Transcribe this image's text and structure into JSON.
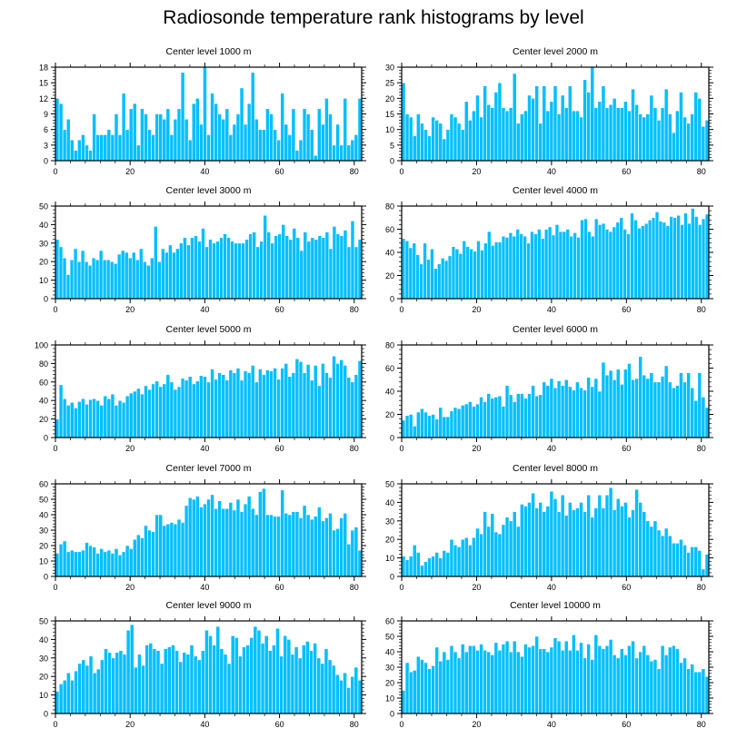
{
  "title": "Radiosonde temperature rank histograms by level",
  "colors": {
    "bar": "#00BFFF",
    "bar_edge": "#ffffff",
    "axis": "#000000"
  },
  "chart_data": [
    {
      "type": "bar",
      "title": "Center level 1000 m",
      "xlim": [
        0,
        82
      ],
      "ylim": [
        0,
        18
      ],
      "xticks": [
        0,
        20,
        40,
        60,
        80
      ],
      "yticks": [
        0,
        3,
        6,
        9,
        12,
        15,
        18
      ],
      "values": [
        12,
        11,
        6,
        8,
        4,
        2,
        4,
        5,
        3,
        2,
        9,
        5,
        5,
        5,
        6,
        5,
        9,
        5,
        13,
        6,
        10,
        11,
        3,
        10,
        9,
        6,
        5,
        9,
        9,
        8,
        10,
        5,
        8,
        10,
        17,
        8,
        4,
        11,
        12,
        7,
        18,
        5,
        13,
        11,
        9,
        8,
        10,
        5,
        7,
        9,
        14,
        7,
        11,
        17,
        8,
        6,
        6,
        10,
        9,
        6,
        4,
        13,
        7,
        5,
        10,
        2,
        4,
        10,
        9,
        6,
        1,
        10,
        7,
        12,
        9,
        3,
        7,
        3,
        12,
        3,
        4,
        5,
        12
      ]
    },
    {
      "type": "bar",
      "title": "Center level 2000 m",
      "xlim": [
        0,
        82
      ],
      "ylim": [
        0,
        30
      ],
      "xticks": [
        0,
        20,
        40,
        60,
        80
      ],
      "yticks": [
        0,
        5,
        10,
        15,
        20,
        25,
        30
      ],
      "values": [
        25,
        15,
        14,
        8,
        15,
        12,
        10,
        8,
        14,
        13,
        12,
        7,
        10,
        15,
        14,
        12,
        10,
        19,
        13,
        16,
        21,
        14,
        24,
        18,
        17,
        22,
        25,
        17,
        16,
        17,
        28,
        12,
        15,
        16,
        21,
        20,
        24,
        12,
        24,
        16,
        19,
        24,
        15,
        21,
        17,
        24,
        16,
        16,
        14,
        26,
        22,
        30,
        17,
        19,
        24,
        17,
        18,
        20,
        17,
        17,
        19,
        16,
        23,
        18,
        15,
        14,
        15,
        21,
        17,
        13,
        17,
        23,
        15,
        9,
        16,
        22,
        14,
        12,
        15,
        22,
        20,
        11,
        13
      ]
    },
    {
      "type": "bar",
      "title": "Center level 3000 m",
      "xlim": [
        0,
        82
      ],
      "ylim": [
        0,
        50
      ],
      "xticks": [
        0,
        20,
        40,
        60,
        80
      ],
      "yticks": [
        0,
        10,
        20,
        30,
        40,
        50
      ],
      "values": [
        32,
        28,
        22,
        13,
        21,
        27,
        20,
        26,
        20,
        18,
        22,
        21,
        26,
        21,
        21,
        20,
        19,
        24,
        26,
        25,
        22,
        25,
        21,
        27,
        20,
        18,
        22,
        39,
        20,
        27,
        25,
        29,
        25,
        27,
        30,
        33,
        29,
        33,
        34,
        31,
        38,
        28,
        32,
        30,
        31,
        33,
        35,
        33,
        31,
        30,
        30,
        30,
        32,
        35,
        36,
        28,
        31,
        45,
        36,
        30,
        34,
        35,
        40,
        34,
        32,
        38,
        33,
        26,
        36,
        31,
        33,
        32,
        34,
        33,
        36,
        27,
        39,
        35,
        34,
        37,
        28,
        42,
        28,
        32
      ]
    },
    {
      "type": "bar",
      "title": "Center level 4000 m",
      "xlim": [
        0,
        82
      ],
      "ylim": [
        0,
        80
      ],
      "xticks": [
        0,
        20,
        40,
        60,
        80
      ],
      "yticks": [
        0,
        20,
        40,
        60,
        80
      ],
      "values": [
        52,
        50,
        44,
        48,
        38,
        30,
        48,
        34,
        43,
        26,
        30,
        35,
        33,
        37,
        45,
        43,
        39,
        50,
        45,
        43,
        41,
        50,
        42,
        48,
        58,
        46,
        49,
        49,
        54,
        53,
        57,
        54,
        60,
        56,
        54,
        48,
        58,
        56,
        60,
        52,
        60,
        62,
        55,
        64,
        58,
        58,
        60,
        54,
        57,
        53,
        68,
        69,
        58,
        54,
        69,
        64,
        65,
        60,
        58,
        62,
        66,
        70,
        60,
        56,
        74,
        68,
        61,
        63,
        65,
        68,
        70,
        75,
        67,
        66,
        63,
        71,
        70,
        72,
        64,
        74,
        65,
        78,
        71,
        64,
        69,
        73
      ]
    },
    {
      "type": "bar",
      "title": "Center level 5000 m",
      "xlim": [
        0,
        82
      ],
      "ylim": [
        0,
        100
      ],
      "xticks": [
        0,
        20,
        40,
        60,
        80
      ],
      "yticks": [
        0,
        20,
        40,
        60,
        80,
        100
      ],
      "values": [
        20,
        57,
        42,
        35,
        38,
        32,
        39,
        42,
        36,
        41,
        42,
        40,
        35,
        45,
        42,
        47,
        35,
        40,
        38,
        45,
        48,
        50,
        53,
        47,
        56,
        52,
        58,
        61,
        55,
        58,
        68,
        60,
        52,
        55,
        64,
        62,
        66,
        58,
        61,
        67,
        66,
        60,
        74,
        63,
        70,
        68,
        62,
        73,
        70,
        75,
        62,
        72,
        70,
        78,
        60,
        74,
        68,
        73,
        72,
        75,
        63,
        75,
        80,
        66,
        70,
        85,
        82,
        70,
        79,
        62,
        78,
        56,
        80,
        70,
        65,
        88,
        80,
        84,
        78,
        65,
        60,
        68,
        83
      ]
    },
    {
      "type": "bar",
      "title": "Center level 6000 m",
      "xlim": [
        0,
        82
      ],
      "ylim": [
        0,
        80
      ],
      "xticks": [
        0,
        20,
        40,
        60,
        80
      ],
      "yticks": [
        0,
        20,
        40,
        60,
        80
      ],
      "values": [
        15,
        19,
        20,
        10,
        22,
        25,
        22,
        19,
        20,
        16,
        26,
        18,
        18,
        23,
        26,
        25,
        28,
        29,
        31,
        27,
        29,
        35,
        31,
        38,
        34,
        35,
        36,
        27,
        45,
        37,
        31,
        38,
        38,
        34,
        38,
        45,
        36,
        37,
        48,
        45,
        51,
        43,
        49,
        45,
        50,
        44,
        41,
        48,
        43,
        41,
        52,
        44,
        51,
        40,
        65,
        54,
        58,
        50,
        59,
        46,
        59,
        64,
        50,
        51,
        70,
        54,
        51,
        56,
        48,
        48,
        53,
        62,
        48,
        43,
        45,
        56,
        48,
        56,
        43,
        32,
        56,
        35,
        26
      ]
    },
    {
      "type": "bar",
      "title": "Center level 7000 m",
      "xlim": [
        0,
        82
      ],
      "ylim": [
        0,
        60
      ],
      "xticks": [
        0,
        20,
        40,
        60,
        80
      ],
      "yticks": [
        0,
        10,
        20,
        30,
        40,
        50,
        60
      ],
      "values": [
        15,
        21,
        23,
        16,
        17,
        16,
        16,
        17,
        22,
        20,
        19,
        15,
        18,
        16,
        17,
        15,
        18,
        14,
        16,
        20,
        18,
        24,
        27,
        25,
        33,
        30,
        29,
        40,
        40,
        33,
        34,
        35,
        34,
        37,
        35,
        46,
        51,
        50,
        52,
        45,
        47,
        50,
        53,
        44,
        49,
        44,
        44,
        48,
        43,
        50,
        42,
        47,
        52,
        44,
        40,
        55,
        57,
        40,
        40,
        39,
        39,
        56,
        41,
        40,
        42,
        42,
        38,
        46,
        40,
        37,
        39,
        45,
        36,
        38,
        41,
        30,
        31,
        38,
        41,
        21,
        30,
        32,
        17
      ]
    },
    {
      "type": "bar",
      "title": "Center level 8000 m",
      "xlim": [
        0,
        82
      ],
      "ylim": [
        0,
        50
      ],
      "xticks": [
        0,
        20,
        40,
        60,
        80
      ],
      "yticks": [
        0,
        10,
        20,
        30,
        40,
        50
      ],
      "values": [
        11,
        9,
        11,
        17,
        13,
        6,
        8,
        10,
        11,
        13,
        10,
        14,
        13,
        20,
        17,
        16,
        20,
        21,
        17,
        21,
        26,
        23,
        35,
        27,
        34,
        24,
        23,
        28,
        32,
        30,
        35,
        27,
        39,
        38,
        40,
        45,
        37,
        40,
        35,
        38,
        46,
        42,
        35,
        44,
        33,
        40,
        36,
        37,
        40,
        35,
        44,
        32,
        37,
        44,
        37,
        44,
        48,
        36,
        42,
        38,
        40,
        32,
        36,
        47,
        40,
        35,
        30,
        27,
        30,
        25,
        22,
        26,
        22,
        18,
        18,
        20,
        17,
        13,
        16,
        16,
        14,
        4,
        12
      ]
    },
    {
      "type": "bar",
      "title": "Center level 9000 m",
      "xlim": [
        0,
        82
      ],
      "ylim": [
        0,
        50
      ],
      "xticks": [
        0,
        20,
        40,
        60,
        80
      ],
      "yticks": [
        0,
        10,
        20,
        30,
        40,
        50
      ],
      "values": [
        12,
        16,
        18,
        22,
        18,
        23,
        27,
        29,
        26,
        31,
        22,
        24,
        29,
        35,
        33,
        30,
        33,
        34,
        32,
        45,
        48,
        25,
        32,
        26,
        37,
        38,
        35,
        34,
        27,
        35,
        36,
        37,
        34,
        28,
        33,
        32,
        37,
        31,
        29,
        34,
        45,
        42,
        37,
        47,
        35,
        32,
        27,
        42,
        41,
        31,
        36,
        37,
        41,
        47,
        45,
        38,
        42,
        34,
        37,
        46,
        31,
        42,
        40,
        32,
        36,
        30,
        37,
        39,
        34,
        38,
        30,
        27,
        35,
        29,
        26,
        21,
        18,
        22,
        14,
        20,
        25,
        18
      ]
    },
    {
      "type": "bar",
      "title": "Center level 10000 m",
      "xlim": [
        0,
        82
      ],
      "ylim": [
        0,
        60
      ],
      "xticks": [
        0,
        20,
        40,
        60,
        80
      ],
      "yticks": [
        0,
        10,
        20,
        30,
        40,
        50,
        60
      ],
      "values": [
        15,
        33,
        27,
        28,
        37,
        35,
        33,
        29,
        31,
        43,
        34,
        40,
        35,
        44,
        40,
        36,
        45,
        40,
        44,
        44,
        41,
        45,
        41,
        40,
        38,
        46,
        41,
        45,
        47,
        40,
        47,
        40,
        37,
        45,
        43,
        44,
        50,
        42,
        42,
        40,
        43,
        49,
        47,
        41,
        47,
        41,
        51,
        41,
        46,
        36,
        45,
        35,
        51,
        44,
        42,
        44,
        48,
        38,
        36,
        42,
        38,
        44,
        47,
        36,
        40,
        44,
        38,
        34,
        35,
        29,
        44,
        38,
        43,
        44,
        42,
        33,
        36,
        29,
        32,
        27,
        27,
        29,
        24
      ]
    }
  ]
}
